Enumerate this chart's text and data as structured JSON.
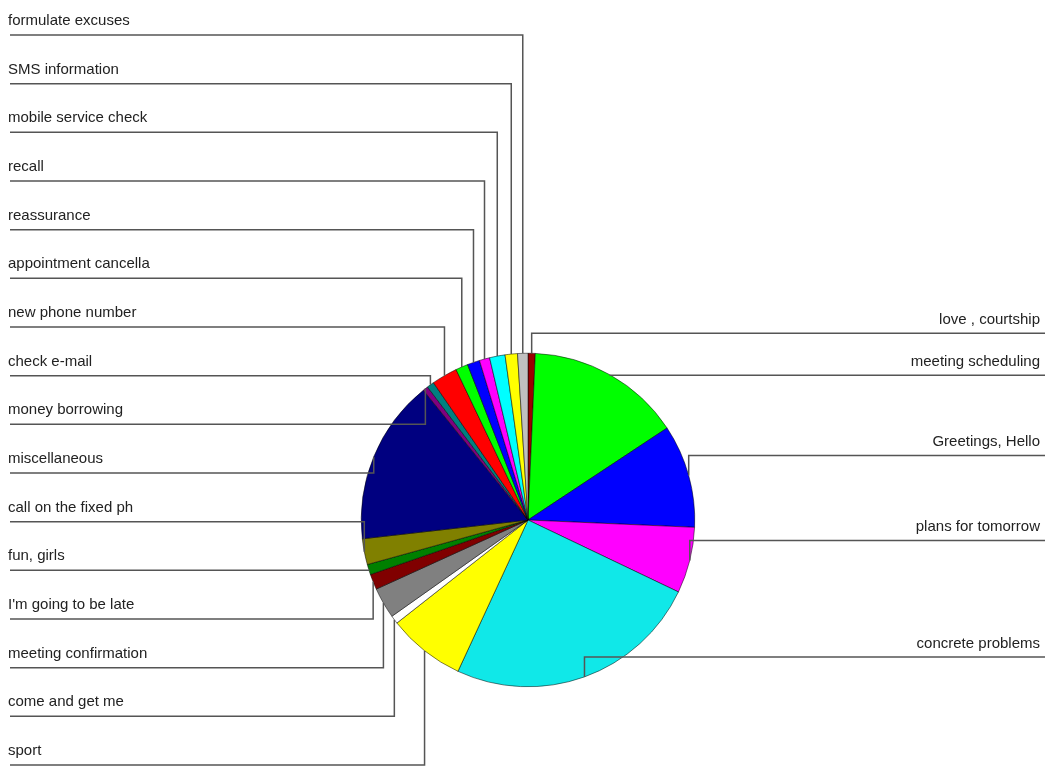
{
  "chart_data": {
    "type": "pie",
    "categories": [
      "love , courtship",
      "meeting scheduling",
      "Greetings, Hello",
      "plans for tomorrow",
      "concrete problems",
      "sport",
      "come and get me",
      "meeting confirmation",
      "I'm going to be late",
      "fun, girls",
      "call on the fixed ph",
      "miscellaneous",
      "money borrowing",
      "check e-mail",
      "new phone number",
      "appointment cancella",
      "reassurance",
      "recall",
      "mobile service check",
      "SMS information",
      "formulate excuses"
    ],
    "values": [
      0.7,
      15,
      10,
      6.4,
      24.8,
      7.5,
      0.8,
      3,
      1.5,
      1,
      2.5,
      16,
      0.5,
      0.7,
      2.5,
      1.2,
      1.2,
      1,
      1.5,
      1.2,
      1
    ],
    "colors": [
      "#990000",
      "#00ff00",
      "#0000ff",
      "#ff00ff",
      "#10e8e8",
      "#ffff00",
      "#ffffff",
      "#808080",
      "#800000",
      "#008000",
      "#808000",
      "#000080",
      "#800080",
      "#008080",
      "#ff0000",
      "#00ff00",
      "#0000ff",
      "#ff00ff",
      "#00ffff",
      "#ffff00",
      "#c0c0c0"
    ]
  }
}
